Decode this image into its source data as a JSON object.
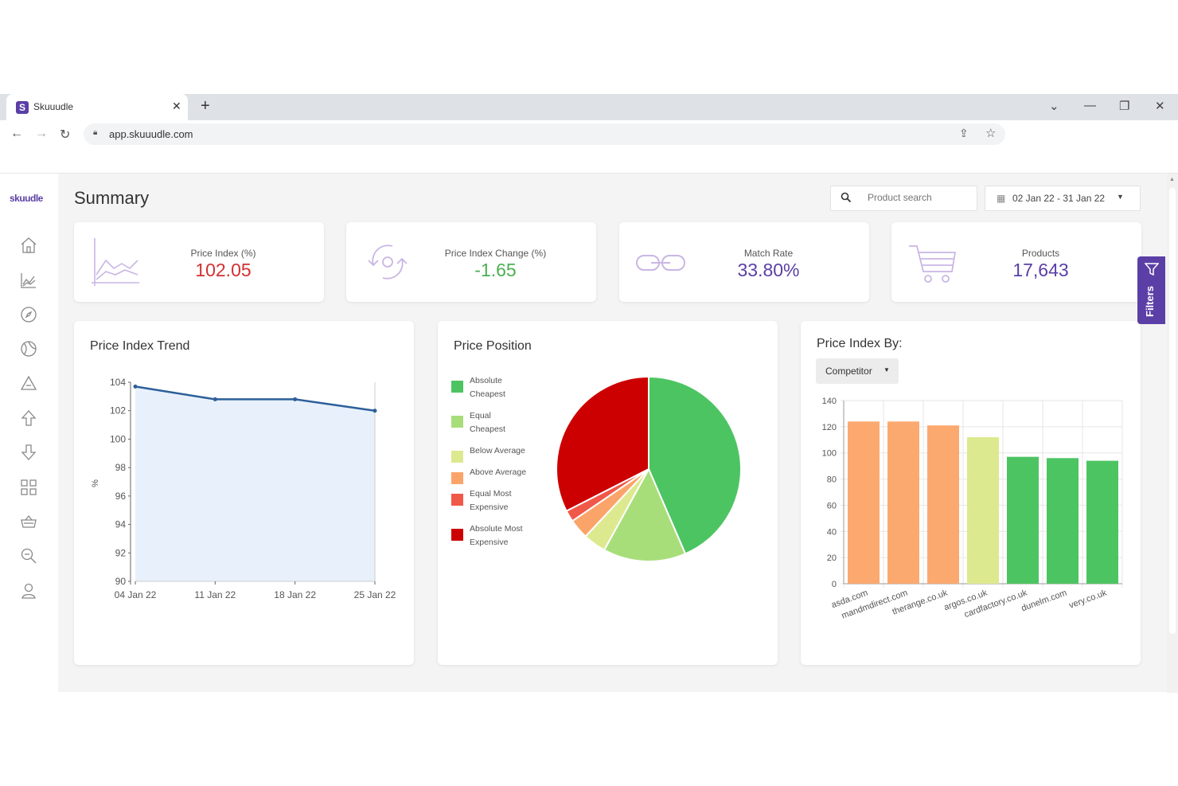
{
  "browser": {
    "tab_title": "Skuuudle",
    "favicon_letter": "S",
    "url": "app.skuuudle.com"
  },
  "app": {
    "logo": "skuudle",
    "page_title": "Summary",
    "search_placeholder": "Product search",
    "date_range": "02 Jan 22 - 31 Jan 22",
    "filters_label": "Filters"
  },
  "kpis": [
    {
      "label": "Price Index (%)",
      "value": "102.05",
      "color": "#d32f2f"
    },
    {
      "label": "Price Index Change (%)",
      "value": "-1.65",
      "color": "#4caf50"
    },
    {
      "label": "Match Rate",
      "value": "33.80%",
      "color": "#5b3fa6"
    },
    {
      "label": "Products",
      "value": "17,643",
      "color": "#5b3fa6"
    }
  ],
  "panels": {
    "trend_title": "Price Index Trend",
    "position_title": "Price Position",
    "by_title": "Price Index By:",
    "by_dropdown": "Competitor"
  },
  "chart_data": [
    {
      "type": "area",
      "title": "Price Index Trend",
      "xlabel": "",
      "ylabel": "%",
      "x": [
        "04 Jan 22",
        "11 Jan 22",
        "18 Jan 22",
        "25 Jan 22"
      ],
      "y": [
        103.7,
        102.8,
        102.8,
        102.0
      ],
      "ylim": [
        90,
        104
      ],
      "yticks": [
        90,
        92,
        94,
        96,
        98,
        100,
        102,
        104
      ],
      "color": "#2d5f9a",
      "fill": "#e8f1fb",
      "grid": false
    },
    {
      "type": "pie",
      "title": "Price Position",
      "legend_position": "left",
      "categories": [
        {
          "label": "Absolute Cheapest",
          "value": 43.5,
          "color": "#4dc462"
        },
        {
          "label": "Equal Cheapest",
          "value": 14.5,
          "color": "#a8de7a"
        },
        {
          "label": "Below Average",
          "value": 4.0,
          "color": "#dde98f"
        },
        {
          "label": "Above Average",
          "value": 3.5,
          "color": "#fba46a"
        },
        {
          "label": "Equal Most Expensive",
          "value": 2.0,
          "color": "#f0584a"
        },
        {
          "label": "Absolute Most Expensive",
          "value": 32.5,
          "color": "#cc0000"
        }
      ]
    },
    {
      "type": "bar",
      "title": "Price Index By:",
      "categories": [
        "asda.com",
        "mandmdirect.com",
        "therange.co.uk",
        "argos.co.uk",
        "cardfactory.co.uk",
        "dunelm.com",
        "very.co.uk"
      ],
      "values": [
        124,
        124,
        121,
        112,
        97,
        96,
        94
      ],
      "colors": [
        "#fba96f",
        "#fba96f",
        "#fba96f",
        "#dde98f",
        "#4dc462",
        "#4dc462",
        "#4dc462"
      ],
      "ylim": [
        0,
        140
      ],
      "yticks": [
        0,
        20,
        40,
        60,
        80,
        100,
        120,
        140
      ],
      "grid": true
    }
  ]
}
